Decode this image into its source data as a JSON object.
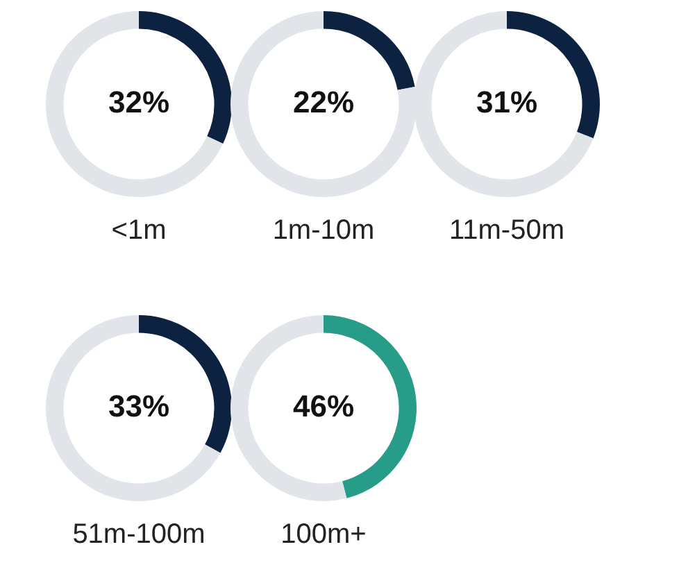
{
  "chart_data": [
    {
      "type": "donut",
      "xlabel": "<1m",
      "categories": [
        null,
        null
      ],
      "values": [
        32,
        68
      ],
      "colors": [
        "#0c2240",
        "#e1e4e9"
      ],
      "value_labels": [
        "32%",
        null
      ]
    },
    {
      "type": "donut",
      "xlabel": "1m-10m",
      "categories": [
        null,
        null
      ],
      "values": [
        22,
        78
      ],
      "colors": [
        "#0c2240",
        "#e1e4e9"
      ],
      "value_labels": [
        "22%",
        null
      ]
    },
    {
      "type": "donut",
      "xlabel": "11m-50m",
      "categories": [
        null,
        null
      ],
      "values": [
        31,
        69
      ],
      "colors": [
        "#0c2240",
        "#e1e4e9"
      ],
      "value_labels": [
        "31%",
        null
      ]
    },
    {
      "type": "donut",
      "xlabel": "51m-100m",
      "categories": [
        null,
        null
      ],
      "values": [
        33,
        67
      ],
      "colors": [
        "#0c2240",
        "#e1e4e9"
      ],
      "value_labels": [
        "33%",
        null
      ]
    },
    {
      "type": "donut",
      "xlabel": "100m+",
      "categories": [
        null,
        null
      ],
      "values": [
        46,
        54
      ],
      "colors": [
        "#279d89",
        "#e1e4e9"
      ],
      "value_labels": [
        "46%",
        null
      ]
    }
  ]
}
